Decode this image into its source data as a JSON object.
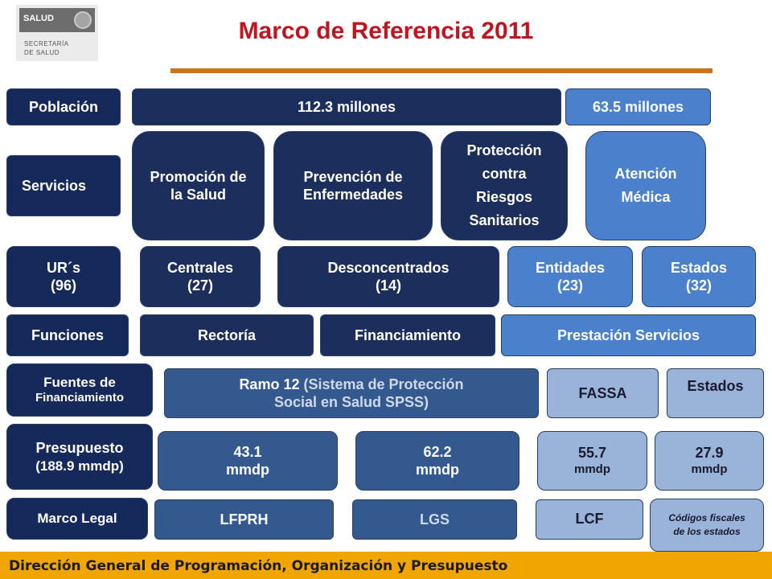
{
  "logo": {
    "brand": "SALUD",
    "line1": "SECRETARÍA",
    "line2": "DE SALUD"
  },
  "title": "Marco de Referencia 2011",
  "rows": {
    "poblacion": {
      "label": "Población",
      "total": "112.3 millones",
      "covered": "63.5 millones"
    },
    "servicios": {
      "label": "Servicios",
      "items": [
        "Promoción de la Salud",
        "Prevención de Enfermedades",
        "Protección contra Riesgos Sanitarios",
        "Atención Médica"
      ]
    },
    "urs": {
      "label_line1": "UR´s",
      "label_line2": "(96)",
      "items": [
        {
          "name": "Centrales",
          "count": "(27)"
        },
        {
          "name": "Desconcentrados",
          "count": "(14)"
        },
        {
          "name": "Entidades",
          "count": "(23)"
        },
        {
          "name": "Estados",
          "count": "(32)"
        }
      ]
    },
    "funciones": {
      "label": "Funciones",
      "items": [
        "Rectoría",
        "Financiamiento",
        "Prestación Servicios"
      ]
    },
    "fuentes": {
      "label_line1": "Fuentes de",
      "label_line2": "Financiamiento",
      "ramo_line1a": "Ramo 12 ",
      "ramo_line1b": "(Sistema de Protección",
      "ramo_line2": "Social en Salud SPSS)",
      "fassa": "FASSA",
      "estados": "Estados"
    },
    "presupuesto": {
      "label_line1": "Presupuesto",
      "label_line2": "(188.9 mmdp)",
      "items": [
        {
          "value": "43.1",
          "unit": "mmdp"
        },
        {
          "value": "62.2",
          "unit": "mmdp"
        },
        {
          "value": "55.7",
          "unit": "mmdp"
        },
        {
          "value": "27.9",
          "unit": "mmdp"
        }
      ]
    },
    "marco_legal": {
      "label": "Marco Legal",
      "items": [
        "LFPRH",
        "LGS",
        "LCF",
        "Códigos fiscales de los estados"
      ]
    }
  },
  "footer": "Dirección General de Programación, Organización y Presupuesto",
  "colors": {
    "navy": "#1c2f5c",
    "steel": "#33598f",
    "mid_blue": "#4a80cc",
    "light_blue": "#9ab3d9",
    "title_red": "#c0141f",
    "accent_orange": "#c8751e",
    "footer_bg": "#f0a500"
  }
}
